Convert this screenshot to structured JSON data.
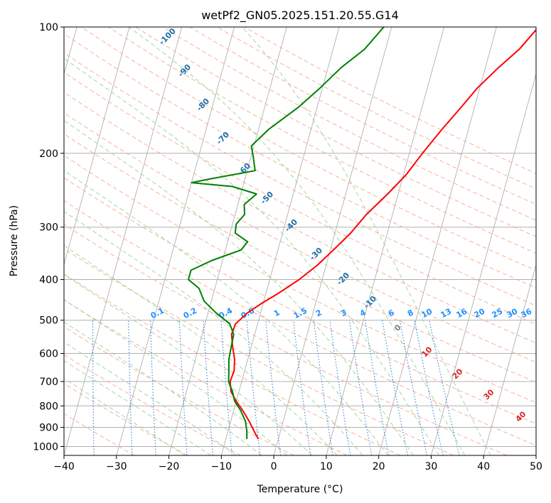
{
  "chart_data": {
    "type": "line",
    "title": "wetPf2_GN05.2025.151.20.55.G14",
    "xlabel": "Temperature (°C)",
    "ylabel": "Pressure (hPa)",
    "xlim": [
      -40,
      50
    ],
    "ylim": [
      1050,
      100
    ],
    "y_scale": "log",
    "x_ticks": [
      "−40",
      "−30",
      "−20",
      "−10",
      "0",
      "10",
      "20",
      "30",
      "40",
      "50"
    ],
    "y_ticks": [
      "100",
      "200",
      "300",
      "400",
      "500",
      "600",
      "700",
      "800",
      "900",
      "1000"
    ],
    "grid": true,
    "colors": {
      "temperature": "#ff0000",
      "dewpoint": "#008000",
      "dry_adiabat": "#f4a582",
      "moist_adiabat": "#9ccf9c",
      "mixing_ratio": "#1f77d4",
      "isotherm": "#888888",
      "moist_label": "#1f6fa8",
      "mixing_label": "#1e90ff",
      "dry_label": "#d62728"
    },
    "series": [
      {
        "key": "temperature",
        "points": [
          [
            -3.8,
            960
          ],
          [
            -5,
            920
          ],
          [
            -6.5,
            870
          ],
          [
            -8.3,
            820
          ],
          [
            -10,
            780
          ],
          [
            -11.5,
            740
          ],
          [
            -12.2,
            700
          ],
          [
            -12,
            660
          ],
          [
            -12.5,
            620
          ],
          [
            -13.5,
            580
          ],
          [
            -14.4,
            540
          ],
          [
            -14.2,
            510
          ],
          [
            -12.5,
            480
          ],
          [
            -10.2,
            455
          ],
          [
            -7.5,
            430
          ],
          [
            -4.4,
            400
          ],
          [
            -1.7,
            370
          ],
          [
            0.6,
            340
          ],
          [
            3,
            310
          ],
          [
            5,
            280
          ],
          [
            8,
            250
          ],
          [
            10.5,
            225
          ],
          [
            12.5,
            200
          ],
          [
            15,
            175
          ],
          [
            17.5,
            155
          ],
          [
            19.5,
            140
          ],
          [
            22.5,
            125
          ],
          [
            25.5,
            113
          ],
          [
            28,
            100
          ]
        ]
      },
      {
        "key": "dewpoint",
        "points": [
          [
            -6,
            960
          ],
          [
            -6.4,
            920
          ],
          [
            -7.2,
            870
          ],
          [
            -8.7,
            820
          ],
          [
            -10.3,
            780
          ],
          [
            -11.2,
            740
          ],
          [
            -12.5,
            700
          ],
          [
            -13,
            660
          ],
          [
            -13.6,
            620
          ],
          [
            -13.8,
            580
          ],
          [
            -14,
            540
          ],
          [
            -15.3,
            510
          ],
          [
            -18.5,
            480
          ],
          [
            -21.4,
            450
          ],
          [
            -23,
            420
          ],
          [
            -25.5,
            400
          ],
          [
            -25.5,
            380
          ],
          [
            -22,
            360
          ],
          [
            -17,
            340
          ],
          [
            -16.2,
            325
          ],
          [
            -19,
            310
          ],
          [
            -19.3,
            295
          ],
          [
            -18.2,
            280
          ],
          [
            -18.8,
            265
          ],
          [
            -17,
            250
          ],
          [
            -22,
            240
          ],
          [
            -30,
            235
          ],
          [
            -26.5,
            230
          ],
          [
            -18.5,
            220
          ],
          [
            -19.5,
            205
          ],
          [
            -20.5,
            192
          ],
          [
            -18,
            175
          ],
          [
            -13.5,
            155
          ],
          [
            -10.5,
            140
          ],
          [
            -7.5,
            125
          ],
          [
            -4,
            113
          ],
          [
            -1.5,
            100
          ]
        ]
      }
    ],
    "mixing_ratio_labels": [
      "0.1",
      "0.2",
      "0.4",
      "0.6",
      "1",
      "1.5",
      "2",
      "3",
      "4",
      "6",
      "8",
      "10",
      "13",
      "16",
      "20",
      "25",
      "30",
      "36"
    ],
    "moist_adiabat_labels": [
      "-100",
      "-90",
      "-80",
      "-70",
      "-60",
      "-50",
      "-40",
      "-30",
      "-20",
      "-10",
      "0"
    ],
    "dry_adiabat_labels": [
      "10",
      "20",
      "30",
      "40"
    ]
  }
}
